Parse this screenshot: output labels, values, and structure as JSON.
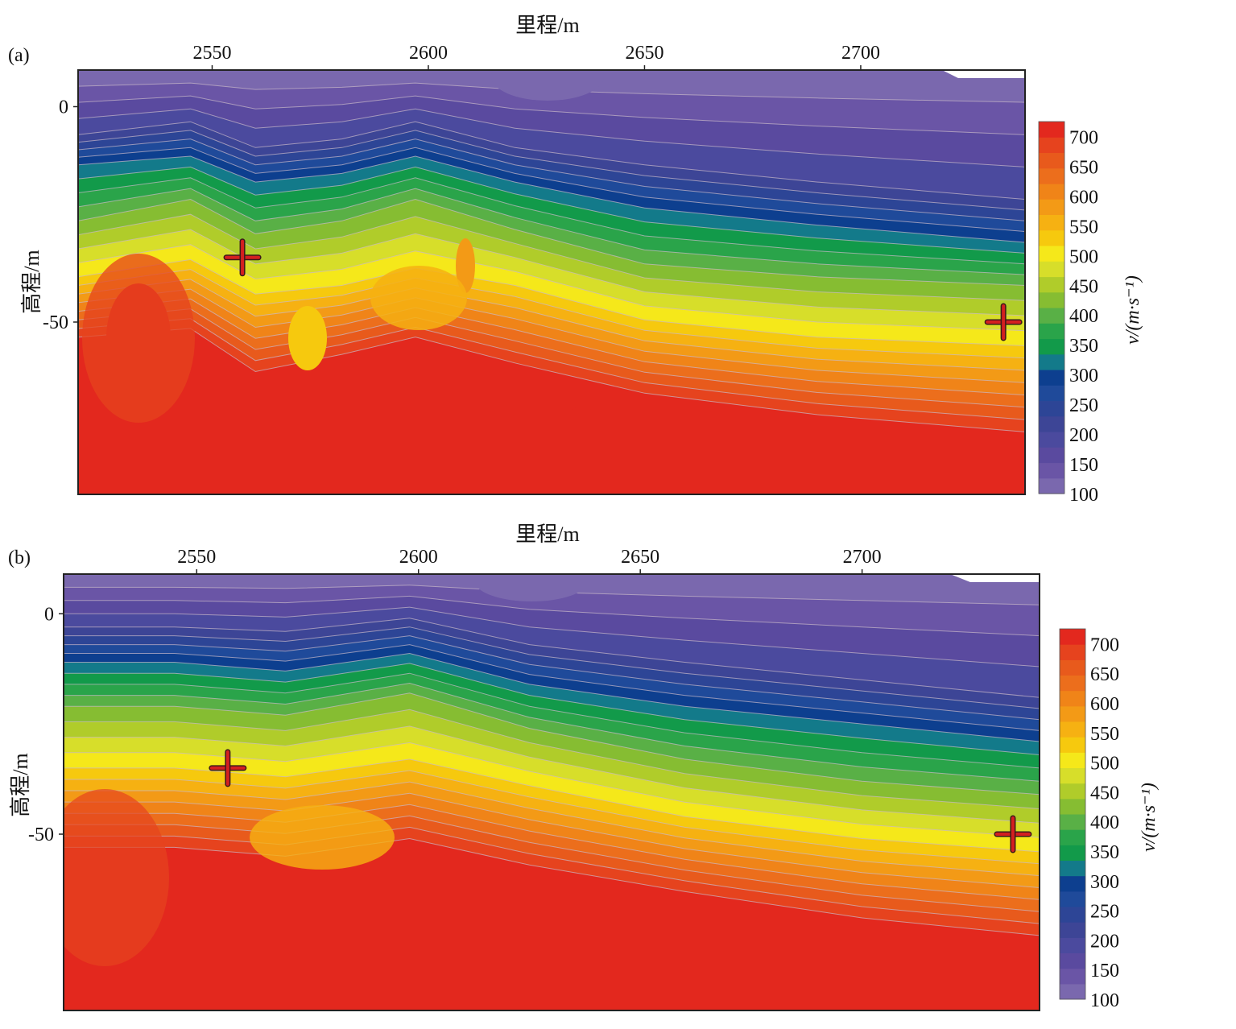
{
  "chart_data": [
    {
      "type": "heatmap",
      "subtype": "filled-contour",
      "panel_label": "(a)",
      "xlabel": "里程/m",
      "ylabel": "高程/m",
      "x_ticks": [
        2550,
        2600,
        2650,
        2700
      ],
      "y_ticks": [
        0,
        -50
      ],
      "xlim": [
        2519,
        2738
      ],
      "ylim": [
        -90,
        8.5
      ],
      "colorbar": {
        "title": "v/(m·s⁻¹)",
        "ticks": [
          700,
          650,
          600,
          550,
          500,
          450,
          400,
          350,
          300,
          250,
          200,
          150,
          100
        ],
        "range": [
          100,
          725
        ]
      },
      "markers": [
        {
          "label": "+",
          "x": 2557,
          "y": -35
        },
        {
          "label": "+",
          "x": 2733,
          "y": -50
        }
      ],
      "surface_profile": [
        {
          "x": 2519,
          "d1": 15,
          "d2": 22,
          "d3": 35,
          "d4": 48,
          "d5": 62
        },
        {
          "x": 2545,
          "d1": 12,
          "d2": 20,
          "d3": 30,
          "d4": 44,
          "d5": 60
        },
        {
          "x": 2560,
          "d1": 18,
          "d2": 26,
          "d3": 38,
          "d4": 52,
          "d5": 70
        },
        {
          "x": 2580,
          "d1": 16,
          "d2": 24,
          "d3": 35,
          "d4": 50,
          "d5": 66
        },
        {
          "x": 2597,
          "d1": 12,
          "d2": 20,
          "d3": 30,
          "d4": 46,
          "d5": 62
        },
        {
          "x": 2620,
          "d1": 18,
          "d2": 26,
          "d3": 37,
          "d4": 50,
          "d5": 68
        },
        {
          "x": 2650,
          "d1": 22,
          "d2": 32,
          "d3": 45,
          "d4": 58,
          "d5": 75
        },
        {
          "x": 2690,
          "d1": 26,
          "d2": 36,
          "d3": 48,
          "d4": 62,
          "d5": 80
        },
        {
          "x": 2738,
          "d1": 30,
          "d2": 40,
          "d3": 50,
          "d4": 64,
          "d5": 84
        }
      ]
    },
    {
      "type": "heatmap",
      "subtype": "filled-contour",
      "panel_label": "(b)",
      "xlabel": "里程/m",
      "ylabel": "高程/m",
      "x_ticks": [
        2550,
        2600,
        2650,
        2700
      ],
      "y_ticks": [
        0,
        -50
      ],
      "xlim": [
        2520,
        2740
      ],
      "ylim": [
        -90,
        9
      ],
      "colorbar": {
        "title": "v/(m·s⁻¹)",
        "ticks": [
          700,
          650,
          600,
          550,
          500,
          450,
          400,
          350,
          300,
          250,
          200,
          150,
          100
        ],
        "range": [
          100,
          725
        ]
      },
      "markers": [
        {
          "label": "+",
          "x": 2557,
          "y": -35
        },
        {
          "label": "+",
          "x": 2734,
          "y": -50
        }
      ],
      "surface_profile": [
        {
          "x": 2520,
          "d1": 12,
          "d2": 20,
          "d3": 30,
          "d4": 44,
          "d5": 62
        },
        {
          "x": 2545,
          "d1": 12,
          "d2": 20,
          "d3": 30,
          "d4": 44,
          "d5": 62
        },
        {
          "x": 2570,
          "d1": 13,
          "d2": 22,
          "d3": 32,
          "d4": 46,
          "d5": 64
        },
        {
          "x": 2598,
          "d1": 10,
          "d2": 18,
          "d3": 27,
          "d4": 42,
          "d5": 60
        },
        {
          "x": 2625,
          "d1": 16,
          "d2": 25,
          "d3": 35,
          "d4": 48,
          "d5": 66
        },
        {
          "x": 2660,
          "d1": 20,
          "d2": 30,
          "d3": 42,
          "d4": 55,
          "d5": 72
        },
        {
          "x": 2700,
          "d1": 24,
          "d2": 34,
          "d3": 47,
          "d4": 60,
          "d5": 78
        },
        {
          "x": 2740,
          "d1": 28,
          "d2": 38,
          "d3": 50,
          "d4": 63,
          "d5": 82
        }
      ]
    }
  ],
  "palette": [
    "#7a68ae",
    "#6a55a6",
    "#5a4a9f",
    "#4b4a9e",
    "#3d4596",
    "#2d4596",
    "#1f4a9a",
    "#0d3f8f",
    "#137a8a",
    "#129a4a",
    "#2aa44a",
    "#59b046",
    "#86bd32",
    "#b0cc2a",
    "#d7de2a",
    "#f5e81a",
    "#f6c90e",
    "#f6b112",
    "#f39a16",
    "#f08418",
    "#ec6e1c",
    "#e85a1c",
    "#e6431e",
    "#e3281e"
  ]
}
